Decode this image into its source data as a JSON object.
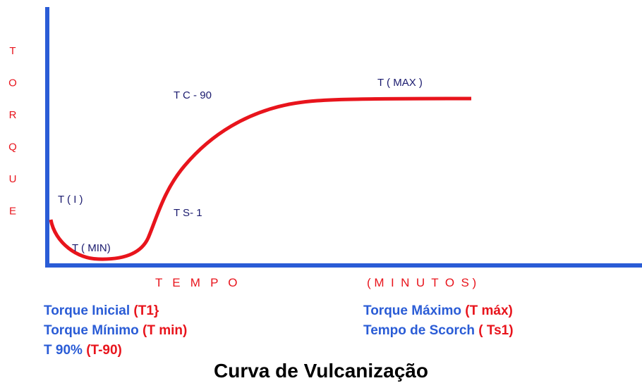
{
  "y_axis_label": [
    "T",
    "O",
    "R",
    "Q",
    "U",
    "E"
  ],
  "x_axis_label": [
    "T   E   M   P   O",
    "( M  I  N  U  T  O  S )"
  ],
  "annotations": {
    "t_i": "T ( I )",
    "t_min": "T ( MIN)",
    "ts_1": "T S- 1",
    "tc_90": "T C - 90",
    "t_max": "T ( MAX )"
  },
  "legend": [
    {
      "label": "Torque Inicial",
      "code": "(T1}"
    },
    {
      "label": "Torque Mínimo",
      "code": "(T min)"
    },
    {
      "label": "T 90%",
      "code": "(T-90)"
    },
    {
      "label": "Torque Máximo",
      "code": "(T máx)"
    },
    {
      "label": "Tempo de Scorch",
      "code": "( Ts1)"
    }
  ],
  "title": "Curva de Vulcanização"
}
